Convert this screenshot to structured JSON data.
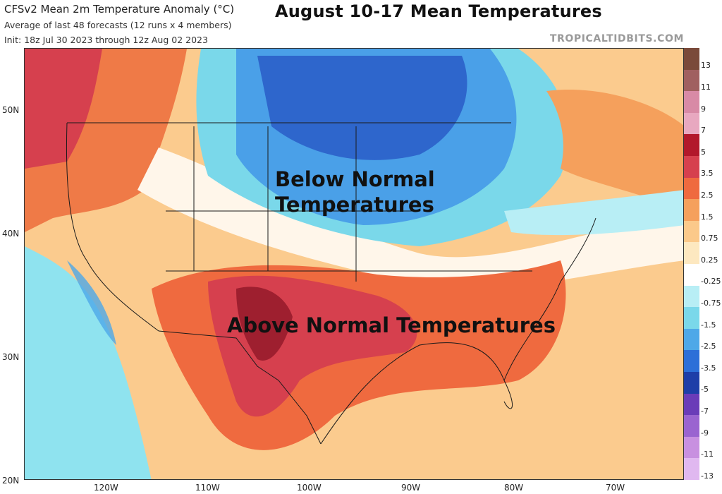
{
  "header": {
    "title": "CFSv2 Mean 2m Temperature Anomaly (°C)",
    "subtitle": "Average of last 48 forecasts (12 runs x 4 members)",
    "init": "Init: 18z Jul 30 2023 through 12z Aug 02 2023"
  },
  "overlay_title": "August 10-17 Mean Temperatures",
  "credit": "TROPICALTIDBITS.COM",
  "axes": {
    "lat_labels": [
      "50N",
      "40N",
      "30N",
      "20N"
    ],
    "lon_labels": [
      "120W",
      "110W",
      "100W",
      "90W",
      "80W",
      "70W"
    ]
  },
  "annotations": {
    "below_line1": "Below Normal",
    "below_line2": "Temperatures",
    "above": "Above Normal Temperatures"
  },
  "legend": {
    "levels": [
      "13",
      "11",
      "9",
      "7",
      "5",
      "3.5",
      "2.5",
      "1.5",
      "0.75",
      "0.25",
      "-0.25",
      "-0.75",
      "-1.5",
      "-2.5",
      "-3.5",
      "-5",
      "-7",
      "-9",
      "-11",
      "-13"
    ],
    "colors": [
      "#7a4a3a",
      "#a06060",
      "#d88aa6",
      "#e8a8c0",
      "#b2182b",
      "#d6404e",
      "#ef6a3f",
      "#f5a05c",
      "#fbc98a",
      "#fde8c0",
      "#ffffff",
      "#b8eef5",
      "#7ad8ea",
      "#4ea8e8",
      "#2c6fd8",
      "#1e3ea8",
      "#6a3cb8",
      "#9a64d0",
      "#c890e0",
      "#e0b8f0"
    ],
    "units": "°C"
  },
  "colors": {
    "ocean_warm": "#fbcb8e",
    "ocean_cool": "#8fe3ef",
    "warm_strong": "#e0573a",
    "warm_extreme": "#9e1f2f",
    "cool": "#4aa0e8",
    "cool_strong": "#2e66cc"
  }
}
